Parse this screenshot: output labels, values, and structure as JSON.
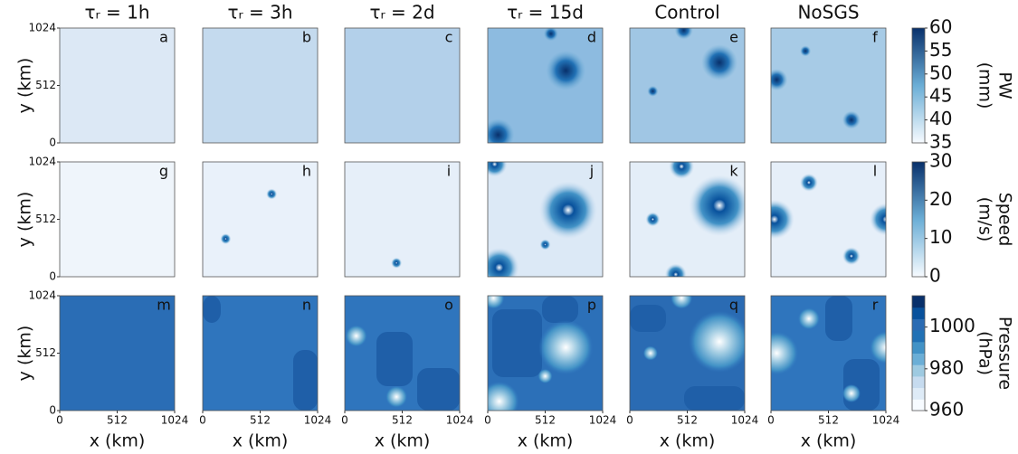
{
  "figure": {
    "columns": [
      "τᵣ = 1h",
      "τᵣ = 3h",
      "τᵣ = 2d",
      "τᵣ = 15d",
      "Control",
      "NoSGS"
    ],
    "panel_labels": [
      "a",
      "b",
      "c",
      "d",
      "e",
      "f",
      "g",
      "h",
      "i",
      "j",
      "k",
      "l",
      "m",
      "n",
      "o",
      "p",
      "q",
      "r"
    ],
    "x_axis": {
      "label": "x (km)",
      "lim": [
        0,
        1024
      ],
      "ticks": [
        0,
        512,
        1024
      ]
    },
    "y_axis": {
      "label": "y (km)",
      "lim": [
        0,
        1024
      ],
      "ticks": [
        0,
        512,
        1024
      ]
    },
    "colorbars": [
      {
        "label": "PW",
        "unit": "(mm)",
        "lim": [
          35,
          60
        ],
        "ticks": [
          35,
          40,
          45,
          50,
          55,
          60
        ]
      },
      {
        "label": "Speed",
        "unit": "(m/s)",
        "lim": [
          0,
          30
        ],
        "ticks": [
          0,
          10,
          20,
          30
        ]
      },
      {
        "label": "Pressure",
        "unit": "(hPa)",
        "lim": [
          960,
          1015
        ],
        "ticks": [
          960,
          980,
          1000
        ]
      }
    ]
  }
}
